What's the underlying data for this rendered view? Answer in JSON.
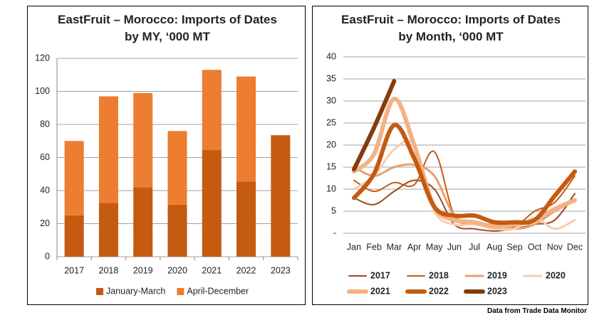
{
  "chart_data": [
    {
      "type": "bar",
      "stacked": true,
      "title": "EastFruit – Morocco: Imports of Dates by MY, ‘000 MT",
      "categories": [
        "2017",
        "2018",
        "2019",
        "2020",
        "2021",
        "2022",
        "2023"
      ],
      "series": [
        {
          "name": "January-March",
          "color": "#c55a11",
          "values": [
            25,
            32.5,
            42,
            31.5,
            64.5,
            45.5,
            73.5
          ]
        },
        {
          "name": "April-December",
          "color": "#ed7d31",
          "values": [
            45,
            64.5,
            57,
            44.5,
            48.5,
            63.5,
            null
          ]
        }
      ],
      "ylim": [
        0,
        120
      ],
      "yticks": [
        0,
        20,
        40,
        60,
        80,
        100,
        120
      ],
      "grid": true,
      "legend": "bottom"
    },
    {
      "type": "line",
      "smooth": true,
      "title": "EastFruit – Morocco: Imports of Dates by Month, ‘000 MT",
      "categories": [
        "Jan",
        "Feb",
        "Mar",
        "Apr",
        "May",
        "Jun",
        "Jul",
        "Aug",
        "Sep",
        "Oct",
        "Nov",
        "Dec"
      ],
      "series": [
        {
          "name": "2017",
          "color": "#a0481c",
          "linewidth": 2,
          "values": [
            8,
            6.5,
            9.5,
            12,
            10,
            2,
            1,
            0.5,
            1,
            2,
            3,
            9
          ]
        },
        {
          "name": "2018",
          "color": "#c55a11",
          "linewidth": 2,
          "values": [
            12,
            9.5,
            11.5,
            11,
            18.5,
            4,
            2,
            1.5,
            1.5,
            5,
            7,
            13
          ]
        },
        {
          "name": "2019",
          "color": "#e4a072",
          "linewidth": 3,
          "values": [
            15,
            13,
            15,
            15.5,
            13,
            4,
            2,
            2,
            1,
            2,
            5,
            7.5
          ]
        },
        {
          "name": "2020",
          "color": "#f6cdb0",
          "linewidth": 3,
          "values": [
            10,
            13,
            19,
            20,
            5,
            2,
            2,
            1,
            1,
            3.5,
            1,
            3
          ]
        },
        {
          "name": "2021",
          "color": "#f4b183",
          "linewidth": 6,
          "values": [
            14,
            18,
            30.5,
            20,
            6,
            3,
            2.5,
            1.5,
            2,
            3,
            5.5,
            7.5
          ]
        },
        {
          "name": "2022",
          "color": "#c55a11",
          "linewidth": 6,
          "values": [
            8,
            13.5,
            24.5,
            17,
            6,
            4,
            4,
            2.5,
            2.5,
            3,
            8.5,
            14
          ]
        },
        {
          "name": "2023",
          "color": "#843c0c",
          "linewidth": 6,
          "values": [
            14.5,
            24,
            34.5,
            null,
            null,
            null,
            null,
            null,
            null,
            null,
            null,
            null
          ]
        }
      ],
      "ylim": [
        0,
        40
      ],
      "yticks": [
        {
          "value": 0,
          "label": "-"
        },
        5,
        10,
        15,
        20,
        25,
        30,
        35,
        40
      ],
      "grid": true,
      "legend": "bottom"
    }
  ],
  "source": "Data from Trade Data Monitor"
}
